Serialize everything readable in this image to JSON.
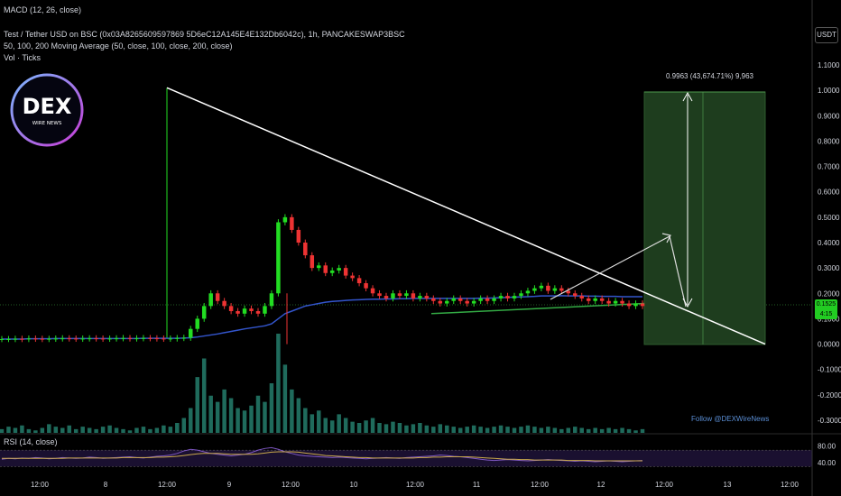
{
  "header": {
    "macd": "MACD (12, 26, close)",
    "symbol": "Test / Tether USD on BSC (0x03A8265609597869 5D6eC12A145E4E132Db6042c), 1h, PANCAKESWAP3BSC",
    "ma": "50, 100, 200 Moving Average (50, close, 100, close, 200, close)",
    "vol": "Vol · Ticks"
  },
  "currency": "USDT",
  "logo": {
    "text": "DEX",
    "subtext": "WIRE NEWS"
  },
  "follow": "Follow @DEXWireNews",
  "rsi_label": "RSI (14, close)",
  "measure_label": "0.9963 (43,674.71%) 9,963",
  "price_tag": {
    "top": "0.1525",
    "bottom": "4:15"
  },
  "colors": {
    "up": "#22dd22",
    "down": "#ee3333",
    "ma": "#3355cc",
    "ma_short": "#33aa44",
    "volume": "#1f6b5c",
    "target_box": "#1e3d1e",
    "rsi": "#7e57c2",
    "rsi_ma": "#c9a94b"
  },
  "chart_data": {
    "type": "line",
    "y_axis": {
      "ticks": [
        "1.1000",
        "1.0000",
        "0.9000",
        "0.8000",
        "0.7000",
        "0.6000",
        "0.5000",
        "0.4000",
        "0.3000",
        "0.2000",
        "0.1000",
        "0.0000",
        "-0.1000",
        "-0.2000",
        "-0.3000"
      ],
      "range": [
        -0.3,
        1.1
      ]
    },
    "x_axis": {
      "ticks": [
        "12:00",
        "8",
        "12:00",
        "9",
        "12:00",
        "10",
        "12:00",
        "11",
        "12:00",
        "12",
        "12:00",
        "13",
        "12:00"
      ]
    },
    "rsi_axis": {
      "ticks": [
        "80.00",
        "40.00"
      ],
      "range": [
        20,
        90
      ]
    },
    "price_close": [
      0.02,
      0.02,
      0.021,
      0.02,
      0.022,
      0.021,
      0.02,
      0.021,
      0.022,
      0.023,
      0.022,
      0.021,
      0.022,
      0.023,
      0.022,
      0.021,
      0.022,
      0.023,
      0.024,
      0.022,
      0.023,
      0.024,
      0.023,
      0.022,
      0.021,
      0.022,
      0.024,
      0.025,
      0.06,
      0.1,
      0.15,
      0.2,
      0.17,
      0.15,
      0.13,
      0.12,
      0.14,
      0.13,
      0.12,
      0.15,
      0.2,
      0.48,
      0.5,
      0.45,
      0.4,
      0.35,
      0.3,
      0.31,
      0.28,
      0.29,
      0.3,
      0.27,
      0.26,
      0.24,
      0.22,
      0.2,
      0.19,
      0.18,
      0.2,
      0.19,
      0.2,
      0.18,
      0.19,
      0.18,
      0.17,
      0.16,
      0.17,
      0.18,
      0.17,
      0.16,
      0.17,
      0.18,
      0.17,
      0.18,
      0.19,
      0.18,
      0.19,
      0.2,
      0.21,
      0.22,
      0.23,
      0.21,
      0.22,
      0.21,
      0.2,
      0.19,
      0.18,
      0.17,
      0.18,
      0.17,
      0.16,
      0.17,
      0.16,
      0.15,
      0.16,
      0.15
    ],
    "ma_long": [
      0.02,
      0.02,
      0.02,
      0.02,
      0.021,
      0.021,
      0.021,
      0.021,
      0.022,
      0.022,
      0.022,
      0.022,
      0.022,
      0.022,
      0.022,
      0.022,
      0.022,
      0.022,
      0.022,
      0.022,
      0.022,
      0.023,
      0.023,
      0.023,
      0.023,
      0.023,
      0.023,
      0.024,
      0.025,
      0.028,
      0.032,
      0.036,
      0.04,
      0.045,
      0.05,
      0.055,
      0.06,
      0.064,
      0.068,
      0.072,
      0.08,
      0.1,
      0.12,
      0.13,
      0.14,
      0.15,
      0.155,
      0.16,
      0.165,
      0.168,
      0.17,
      0.172,
      0.174,
      0.175,
      0.176,
      0.177,
      0.177,
      0.178,
      0.178,
      0.179,
      0.179,
      0.18,
      0.18,
      0.18,
      0.18,
      0.18,
      0.18,
      0.18,
      0.18,
      0.18,
      0.18,
      0.181,
      0.181,
      0.182,
      0.183,
      0.184,
      0.185,
      0.186,
      0.187,
      0.188,
      0.19,
      0.19,
      0.19,
      0.191,
      0.19,
      0.19,
      0.19,
      0.189,
      0.189,
      0.188,
      0.188,
      0.188,
      0.187,
      0.187,
      0.187,
      0.187
    ],
    "volume": [
      3,
      5,
      4,
      6,
      3,
      2,
      4,
      7,
      5,
      4,
      6,
      3,
      5,
      4,
      3,
      5,
      6,
      4,
      3,
      2,
      4,
      5,
      3,
      4,
      6,
      5,
      8,
      12,
      20,
      45,
      60,
      30,
      25,
      35,
      28,
      20,
      18,
      22,
      30,
      25,
      40,
      80,
      55,
      35,
      28,
      20,
      15,
      18,
      12,
      10,
      15,
      12,
      9,
      8,
      10,
      12,
      8,
      7,
      9,
      8,
      6,
      7,
      8,
      6,
      5,
      7,
      6,
      5,
      4,
      5,
      6,
      5,
      4,
      5,
      6,
      5,
      4,
      5,
      6,
      5,
      4,
      5,
      4,
      3,
      4,
      5,
      4,
      3,
      4,
      3,
      4,
      3,
      4,
      3,
      2,
      3
    ],
    "rsi": [
      48,
      50,
      49,
      51,
      50,
      52,
      51,
      49,
      50,
      52,
      51,
      50,
      51,
      53,
      52,
      50,
      51,
      52,
      53,
      54,
      52,
      51,
      53,
      55,
      56,
      58,
      62,
      68,
      72,
      70,
      66,
      62,
      60,
      58,
      56,
      58,
      60,
      64,
      70,
      74,
      76,
      72,
      66,
      62,
      58,
      56,
      55,
      54,
      53,
      52,
      53,
      52,
      51,
      50,
      49,
      50,
      51,
      52,
      51,
      50,
      52,
      53,
      54,
      55,
      56,
      58,
      57,
      55,
      54,
      52,
      50,
      48,
      46,
      45,
      46,
      47,
      46,
      45,
      44,
      45,
      46,
      47,
      46,
      45,
      44,
      43,
      44,
      43,
      42,
      43,
      44,
      43,
      42,
      43,
      44,
      45
    ],
    "rsi_ma": [
      50,
      50,
      50,
      50,
      50,
      50,
      50,
      50,
      50,
      50,
      51,
      51,
      51,
      51,
      51,
      51,
      51,
      51,
      52,
      52,
      52,
      52,
      52,
      53,
      53,
      54,
      55,
      57,
      59,
      61,
      62,
      62,
      62,
      61,
      60,
      60,
      60,
      60,
      61,
      63,
      65,
      66,
      66,
      66,
      65,
      63,
      61,
      59,
      57,
      56,
      55,
      54,
      53,
      52,
      52,
      51,
      51,
      51,
      51,
      51,
      51,
      51,
      52,
      52,
      53,
      53,
      54,
      54,
      54,
      54,
      53,
      52,
      51,
      50,
      49,
      48,
      48,
      47,
      47,
      46,
      46,
      46,
      46,
      46,
      45,
      45,
      45,
      45,
      44,
      44,
      44,
      44,
      44,
      44,
      44,
      44
    ]
  }
}
